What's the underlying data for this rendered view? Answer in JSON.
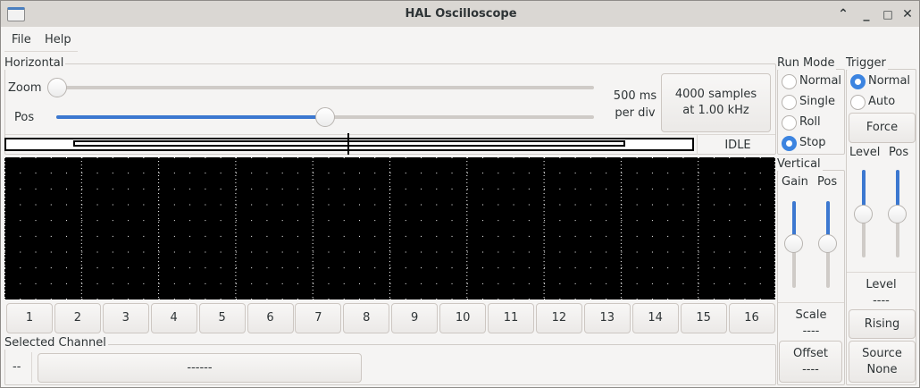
{
  "window": {
    "title": "HAL Oscilloscope"
  },
  "menu": {
    "file": "File",
    "help": "Help"
  },
  "horizontal": {
    "label": "Horizontal",
    "zoom_label": "Zoom",
    "pos_label": "Pos",
    "zoom_value": 0,
    "pos_value": 0.5,
    "scale_line1": "500 ms",
    "scale_line2": "per div",
    "samples_line1": "4000 samples",
    "samples_line2": "at 1.00 kHz",
    "status": "IDLE"
  },
  "channels": [
    "1",
    "2",
    "3",
    "4",
    "5",
    "6",
    "7",
    "8",
    "9",
    "10",
    "11",
    "12",
    "13",
    "14",
    "15",
    "16"
  ],
  "selected_channel": {
    "label": "Selected Channel",
    "number": "--",
    "name": "------"
  },
  "run_mode": {
    "label": "Run Mode",
    "options": [
      "Normal",
      "Single",
      "Roll",
      "Stop"
    ],
    "selected": "Stop"
  },
  "vertical": {
    "label": "Vertical",
    "gain_label": "Gain",
    "pos_label": "Pos",
    "scale_label": "Scale",
    "scale_value": "----",
    "offset_label": "Offset",
    "offset_value": "----"
  },
  "trigger": {
    "label": "Trigger",
    "options": [
      "Normal",
      "Auto"
    ],
    "selected": "Normal",
    "force": "Force",
    "level_label": "Level",
    "pos_label": "Pos",
    "level_title": "Level",
    "level_value": "----",
    "edge": "Rising",
    "source_label": "Source",
    "source_value": "None"
  },
  "colors": {
    "accent": "#3c84e0",
    "scope_bg": "#000000"
  }
}
